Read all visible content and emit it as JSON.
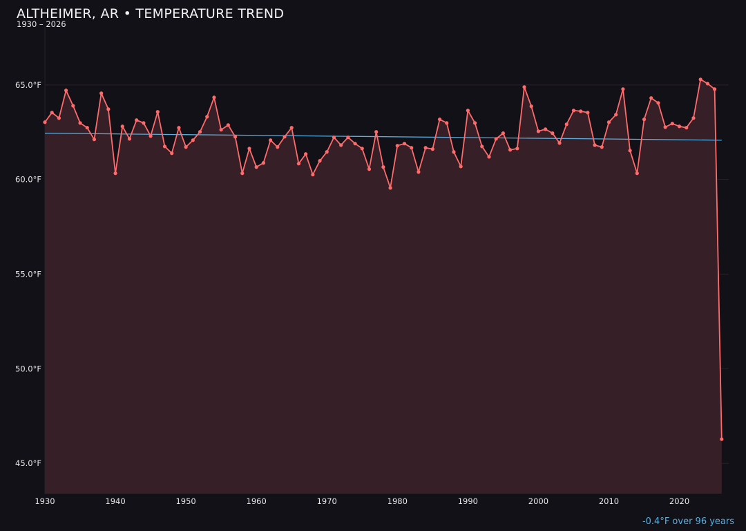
{
  "chart_data": {
    "type": "line",
    "title": "ALTHEIMER, AR • TEMPERATURE TREND",
    "subtitle": "1930 – 2026",
    "xlabel": "",
    "ylabel": "",
    "xlim": [
      1930,
      2027
    ],
    "ylim": [
      43.4,
      68.1
    ],
    "grid": true,
    "legend": "none",
    "x_ticks": [
      1930,
      1940,
      1950,
      1960,
      1970,
      1980,
      1990,
      2000,
      2010,
      2020
    ],
    "y_ticks": [
      45,
      50,
      55,
      60,
      65
    ],
    "y_tick_labels": [
      "45.0°F",
      "50.0°F",
      "55.0°F",
      "60.0°F",
      "65.0°F"
    ],
    "series": [
      {
        "x": [
          1930,
          1931,
          1932,
          1933,
          1934,
          1935,
          1936,
          1937,
          1938,
          1939,
          1940,
          1941,
          1942,
          1943,
          1944,
          1945,
          1946,
          1947,
          1948,
          1949,
          1950,
          1951,
          1952,
          1953,
          1954,
          1955,
          1956,
          1957,
          1958,
          1959,
          1960,
          1961,
          1962,
          1963,
          1964,
          1965,
          1966,
          1967,
          1968,
          1969,
          1970,
          1971,
          1972,
          1973,
          1974,
          1975,
          1976,
          1977,
          1978,
          1979,
          1980,
          1981,
          1982,
          1983,
          1984,
          1985,
          1986,
          1987,
          1988,
          1989,
          1990,
          1991,
          1992,
          1993,
          1994,
          1995,
          1996,
          1997,
          1998,
          1999,
          2000,
          2001,
          2002,
          2003,
          2004,
          2005,
          2006,
          2007,
          2008,
          2009,
          2010,
          2011,
          2012,
          2013,
          2014,
          2015,
          2016,
          2017,
          2018,
          2019,
          2020,
          2021,
          2022,
          2023,
          2024,
          2025,
          2026
        ],
        "values": [
          63.03,
          63.54,
          63.25,
          64.71,
          63.9,
          62.99,
          62.74,
          62.12,
          64.56,
          63.72,
          60.33,
          62.81,
          62.15,
          63.14,
          62.99,
          62.3,
          63.58,
          61.75,
          61.39,
          62.74,
          61.72,
          62.08,
          62.52,
          63.32,
          64.34,
          62.63,
          62.88,
          62.26,
          60.33,
          61.64,
          60.66,
          60.88,
          62.08,
          61.72,
          62.26,
          62.74,
          60.84,
          61.35,
          60.26,
          60.99,
          61.46,
          62.23,
          61.82,
          62.23,
          61.9,
          61.64,
          60.55,
          62.52,
          60.66,
          59.56,
          61.79,
          61.9,
          61.68,
          60.4,
          61.68,
          61.61,
          63.18,
          62.99,
          61.46,
          60.69,
          63.65,
          62.99,
          61.75,
          61.2,
          62.15,
          62.45,
          61.57,
          61.64,
          64.89,
          63.87,
          62.55,
          62.66,
          62.45,
          61.93,
          62.92,
          63.65,
          63.61,
          63.54,
          61.82,
          61.72,
          63.03,
          63.43,
          64.78,
          61.53,
          60.33,
          63.18,
          64.31,
          64.05,
          62.77,
          62.96,
          62.81,
          62.74,
          63.25,
          65.29,
          65.07,
          64.78,
          46.28
        ],
        "color": "#ff6b6b",
        "fill": "#361f26"
      }
    ],
    "trendline": {
      "x": [
        1930,
        2026
      ],
      "values": [
        62.45,
        62.08
      ],
      "color": "#5aafe0"
    },
    "annotation": {
      "text": "-0.4°F over 96 years",
      "color": "#5aafe0"
    }
  }
}
